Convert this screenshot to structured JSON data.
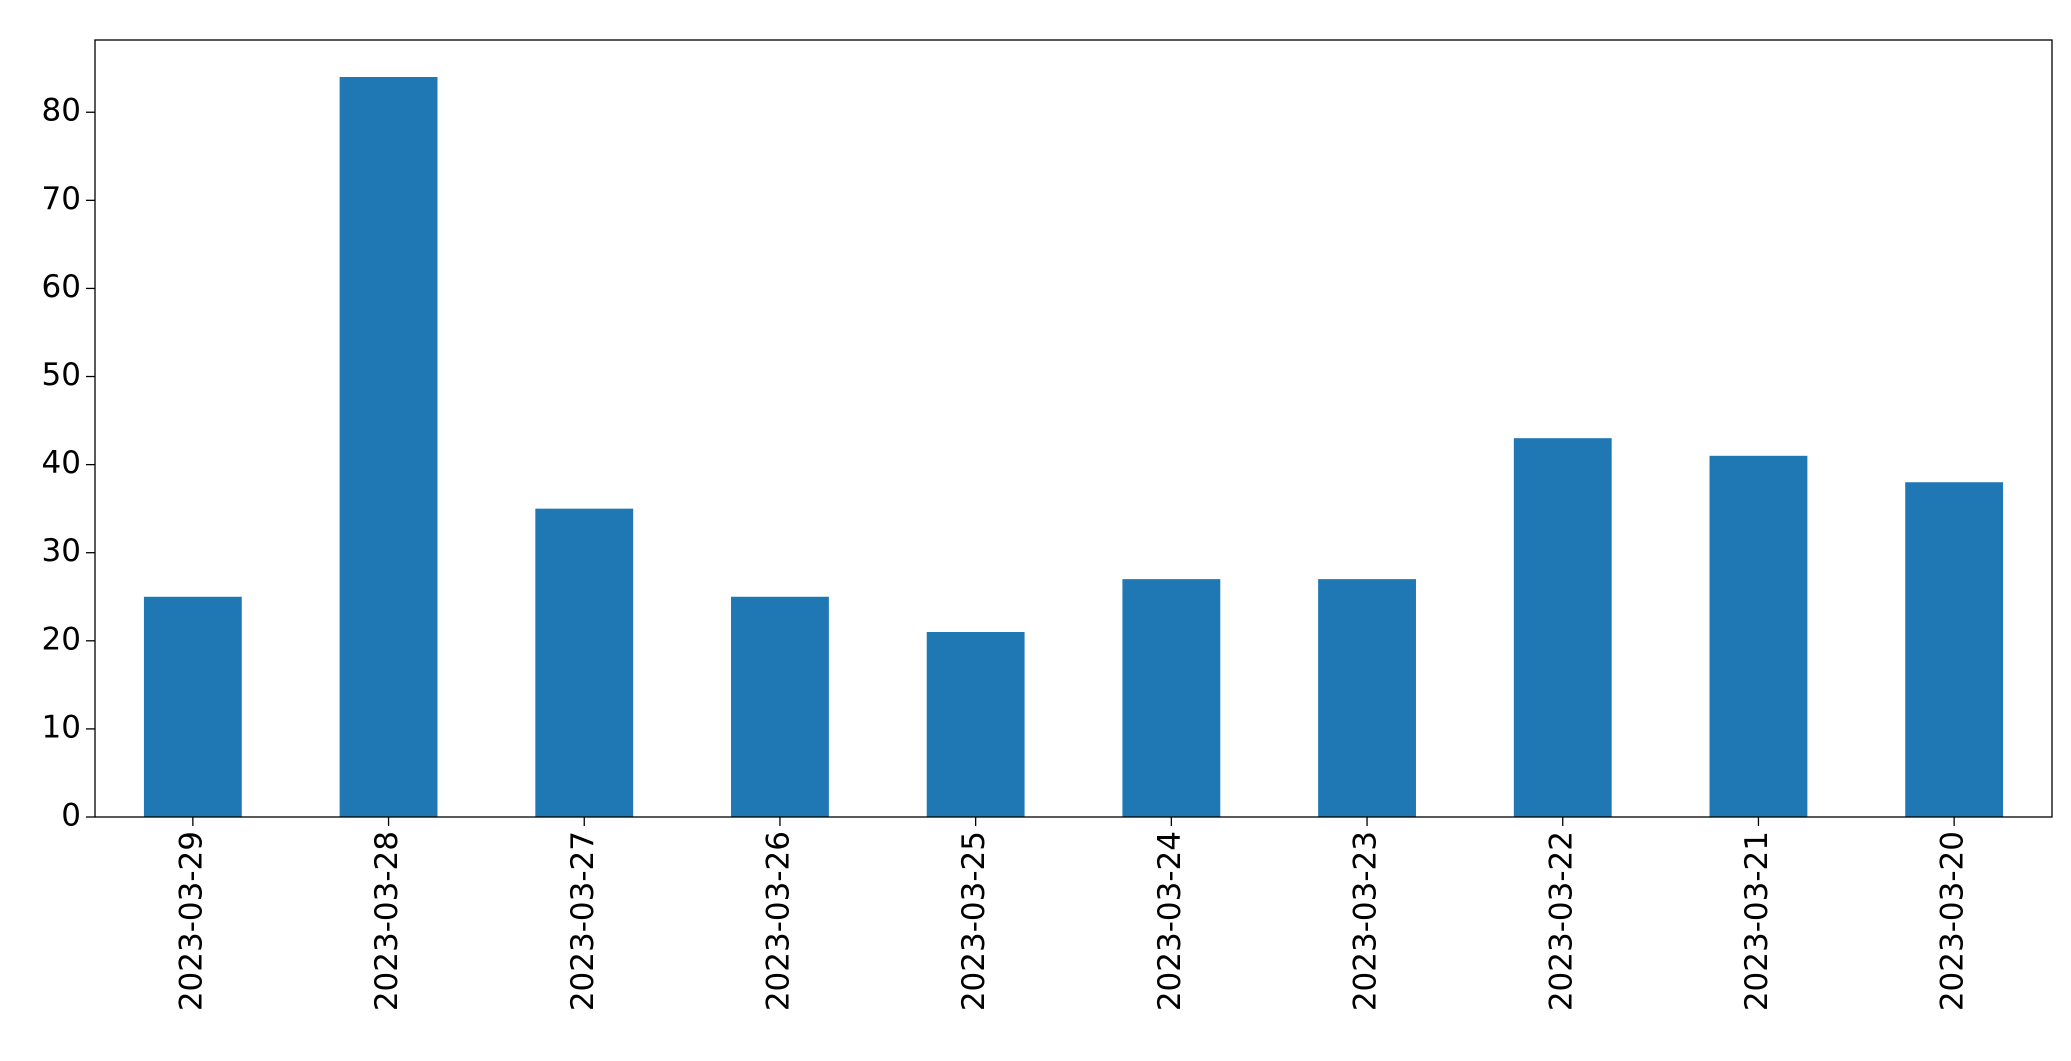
{
  "chart_data": {
    "type": "bar",
    "categories": [
      "2023-03-29",
      "2023-03-28",
      "2023-03-27",
      "2023-03-26",
      "2023-03-25",
      "2023-03-24",
      "2023-03-23",
      "2023-03-22",
      "2023-03-21",
      "2023-03-20"
    ],
    "values": [
      25,
      84,
      35,
      25,
      21,
      27,
      27,
      43,
      41,
      38
    ],
    "color": "#1f77b4",
    "ylim": [
      0,
      88.2
    ],
    "yticks": [
      0,
      10,
      20,
      30,
      40,
      50,
      60,
      70,
      80
    ],
    "grid": false
  }
}
